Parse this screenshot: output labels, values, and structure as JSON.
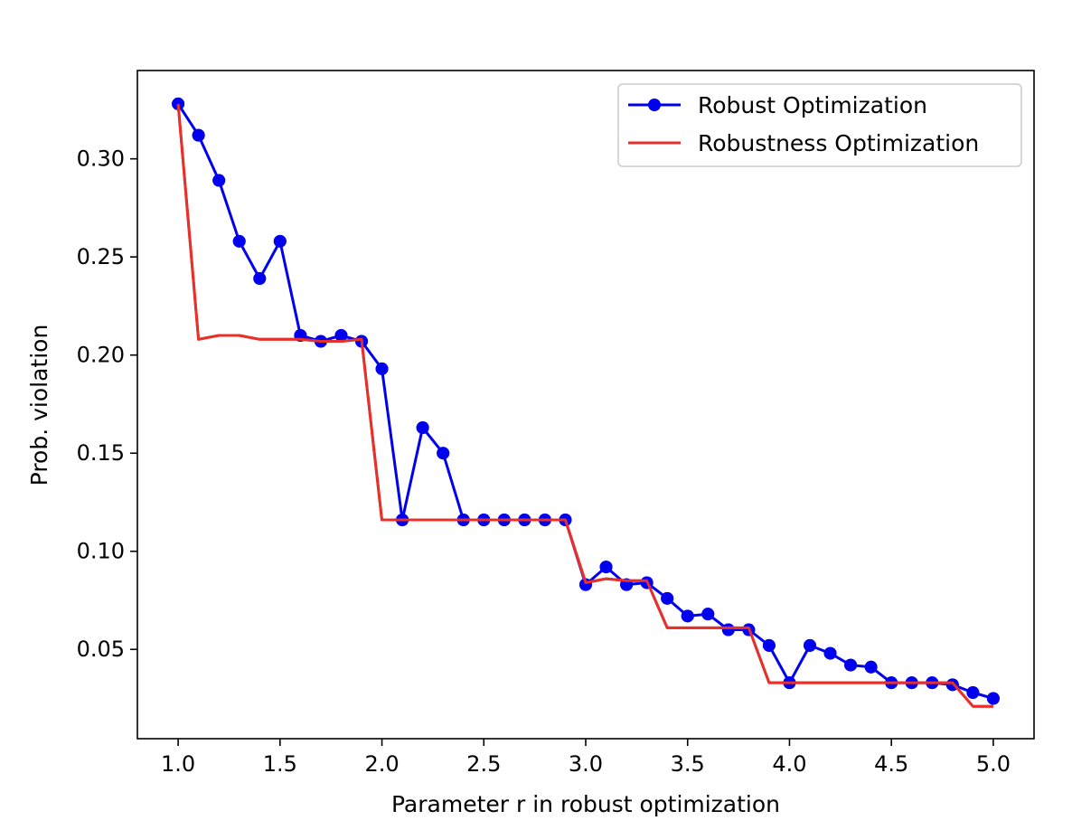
{
  "chart_data": {
    "type": "line",
    "title": "",
    "xlabel": "Parameter r in robust optimization",
    "ylabel": "Prob. violation",
    "xlim": [
      0.8,
      5.2
    ],
    "ylim": [
      0.0045,
      0.345
    ],
    "xticks": [
      1.0,
      1.5,
      2.0,
      2.5,
      3.0,
      3.5,
      4.0,
      4.5,
      5.0
    ],
    "xtick_labels": [
      "1.0",
      "1.5",
      "2.0",
      "2.5",
      "3.0",
      "3.5",
      "4.0",
      "4.5",
      "5.0"
    ],
    "yticks": [
      0.05,
      0.1,
      0.15,
      0.2,
      0.25,
      0.3
    ],
    "ytick_labels": [
      "0.05",
      "0.10",
      "0.15",
      "0.20",
      "0.25",
      "0.30"
    ],
    "grid": false,
    "legend_position": "top-right",
    "x": [
      1.0,
      1.1,
      1.2,
      1.3,
      1.4,
      1.5,
      1.6,
      1.7,
      1.8,
      1.9,
      2.0,
      2.1,
      2.2,
      2.3,
      2.4,
      2.5,
      2.6,
      2.7,
      2.8,
      2.9,
      3.0,
      3.1,
      3.2,
      3.3,
      3.4,
      3.5,
      3.6,
      3.7,
      3.8,
      3.9,
      4.0,
      4.1,
      4.2,
      4.3,
      4.4,
      4.5,
      4.6,
      4.7,
      4.8,
      4.9,
      5.0
    ],
    "series": [
      {
        "name": "Robust Optimization",
        "color": "#0000ee",
        "marker": "circle",
        "values": [
          0.328,
          0.312,
          0.289,
          0.258,
          0.239,
          0.258,
          0.21,
          0.207,
          0.21,
          0.207,
          0.193,
          0.116,
          0.163,
          0.15,
          0.116,
          0.116,
          0.116,
          0.116,
          0.116,
          0.116,
          0.083,
          0.092,
          0.083,
          0.084,
          0.076,
          0.067,
          0.068,
          0.06,
          0.06,
          0.052,
          0.033,
          0.052,
          0.048,
          0.042,
          0.041,
          0.033,
          0.033,
          0.033,
          0.032,
          0.028,
          0.025
        ]
      },
      {
        "name": "Robustness Optimization",
        "color": "#e8302a",
        "marker": "none",
        "values": [
          0.328,
          0.208,
          0.21,
          0.21,
          0.208,
          0.208,
          0.208,
          0.207,
          0.207,
          0.208,
          0.116,
          0.116,
          0.116,
          0.116,
          0.116,
          0.116,
          0.116,
          0.116,
          0.116,
          0.116,
          0.084,
          0.086,
          0.085,
          0.085,
          0.061,
          0.061,
          0.061,
          0.061,
          0.061,
          0.033,
          0.033,
          0.033,
          0.033,
          0.033,
          0.033,
          0.033,
          0.033,
          0.033,
          0.033,
          0.021,
          0.021
        ]
      }
    ]
  }
}
